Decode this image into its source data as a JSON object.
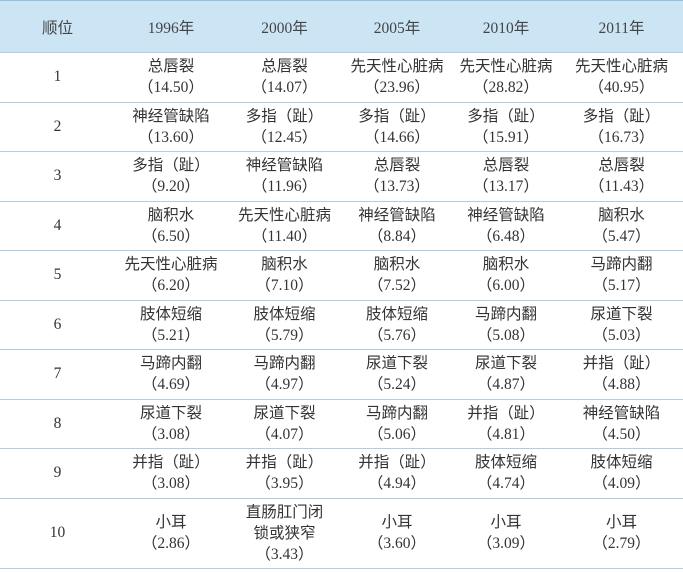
{
  "table": {
    "header": [
      "顺位",
      "1996年",
      "2000年",
      "2005年",
      "2010年",
      "2011年"
    ],
    "rows": [
      {
        "rank": 1,
        "cells": [
          [
            "总唇裂",
            "（14.50）"
          ],
          [
            "总唇裂",
            "（14.07）"
          ],
          [
            "先天性心脏病",
            "（23.96）"
          ],
          [
            "先天性心脏病",
            "（28.82）"
          ],
          [
            "先天性心脏病",
            "（40.95）"
          ]
        ]
      },
      {
        "rank": 2,
        "cells": [
          [
            "神经管缺陷",
            "（13.60）"
          ],
          [
            "多指（趾）",
            "（12.45）"
          ],
          [
            "多指（趾）",
            "（14.66）"
          ],
          [
            "多指（趾）",
            "（15.91）"
          ],
          [
            "多指（趾）",
            "（16.73）"
          ]
        ]
      },
      {
        "rank": 3,
        "cells": [
          [
            "多指（趾）",
            "（9.20）"
          ],
          [
            "神经管缺陷",
            "（11.96）"
          ],
          [
            "总唇裂",
            "（13.73）"
          ],
          [
            "总唇裂",
            "（13.17）"
          ],
          [
            "总唇裂",
            "（11.43）"
          ]
        ]
      },
      {
        "rank": 4,
        "cells": [
          [
            "脑积水",
            "（6.50）"
          ],
          [
            "先天性心脏病",
            "（11.40）"
          ],
          [
            "神经管缺陷",
            "（8.84）"
          ],
          [
            "神经管缺陷",
            "（6.48）"
          ],
          [
            "脑积水",
            "（5.47）"
          ]
        ]
      },
      {
        "rank": 5,
        "cells": [
          [
            "先天性心脏病",
            "（6.20）"
          ],
          [
            "脑积水",
            "（7.10）"
          ],
          [
            "脑积水",
            "（7.52）"
          ],
          [
            "脑积水",
            "（6.00）"
          ],
          [
            "马蹄内翻",
            "（5.17）"
          ]
        ]
      },
      {
        "rank": 6,
        "cells": [
          [
            "肢体短缩",
            "（5.21）"
          ],
          [
            "肢体短缩",
            "（5.79）"
          ],
          [
            "肢体短缩",
            "（5.76）"
          ],
          [
            "马蹄内翻",
            "（5.08）"
          ],
          [
            "尿道下裂",
            "（5.03）"
          ]
        ]
      },
      {
        "rank": 7,
        "cells": [
          [
            "马蹄内翻",
            "（4.69）"
          ],
          [
            "马蹄内翻",
            "（4.97）"
          ],
          [
            "尿道下裂",
            "（5.24）"
          ],
          [
            "尿道下裂",
            "（4.87）"
          ],
          [
            "并指（趾）",
            "（4.88）"
          ]
        ]
      },
      {
        "rank": 8,
        "cells": [
          [
            "尿道下裂",
            "（3.08）"
          ],
          [
            "尿道下裂",
            "（4.07）"
          ],
          [
            "马蹄内翻",
            "（5.06）"
          ],
          [
            "并指（趾）",
            "（4.81）"
          ],
          [
            "神经管缺陷",
            "（4.50）"
          ]
        ]
      },
      {
        "rank": 9,
        "cells": [
          [
            "并指（趾）",
            "（3.08）"
          ],
          [
            "并指（趾）",
            "（3.95）"
          ],
          [
            "并指（趾）",
            "（4.94）"
          ],
          [
            "肢体短缩",
            "（4.74）"
          ],
          [
            "肢体短缩",
            "（4.09）"
          ]
        ]
      },
      {
        "rank": 10,
        "cells": [
          [
            "小耳",
            "（2.86）"
          ],
          [
            "直肠肛门闭锁或狭窄",
            "（3.43）"
          ],
          [
            "小耳",
            "（3.60）"
          ],
          [
            "小耳",
            "（3.09）"
          ],
          [
            "小耳",
            "（2.79）"
          ]
        ]
      }
    ]
  }
}
